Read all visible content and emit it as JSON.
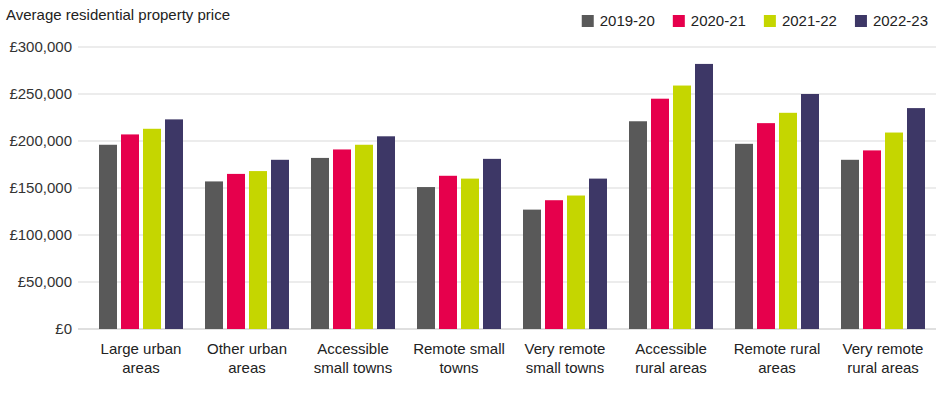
{
  "chart_data": {
    "type": "bar",
    "y_label": "Average residential property price",
    "categories": [
      "Large urban areas",
      "Other urban areas",
      "Accessible small towns",
      "Remote small towns",
      "Very remote small towns",
      "Accessible rural areas",
      "Remote rural areas",
      "Very remote rural areas"
    ],
    "series": [
      {
        "name": "2019-20",
        "color": "#595959",
        "values": [
          196000,
          157000,
          182000,
          151000,
          127000,
          221000,
          197000,
          180000
        ]
      },
      {
        "name": "2020-21",
        "color": "#e6004c",
        "values": [
          207000,
          165000,
          191000,
          163000,
          137000,
          245000,
          219000,
          190000
        ]
      },
      {
        "name": "2021-22",
        "color": "#c5d600",
        "values": [
          213000,
          168000,
          196000,
          160000,
          142000,
          259000,
          230000,
          209000
        ]
      },
      {
        "name": "2022-23",
        "color": "#3d3766",
        "values": [
          223000,
          180000,
          205000,
          181000,
          160000,
          282000,
          250000,
          235000
        ]
      }
    ],
    "ylim": [
      0,
      300000
    ],
    "yticks": [
      {
        "value": 0,
        "label": "£0"
      },
      {
        "value": 50000,
        "label": "£50,000"
      },
      {
        "value": 100000,
        "label": "£100,000"
      },
      {
        "value": 150000,
        "label": "£150,000"
      },
      {
        "value": 200000,
        "label": "£200,000"
      },
      {
        "value": 250000,
        "label": "£250,000"
      },
      {
        "value": 300000,
        "label": "£300,000"
      }
    ],
    "grid": true,
    "legend": "upper right"
  }
}
